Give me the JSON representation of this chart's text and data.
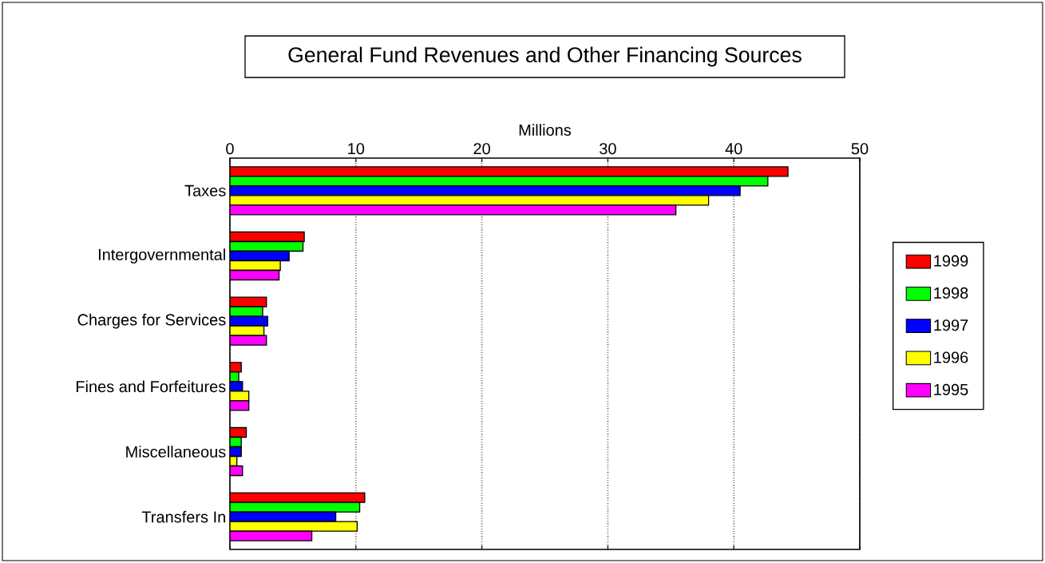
{
  "chart_data": {
    "type": "bar",
    "orientation": "horizontal",
    "title": "General Fund Revenues and Other Financing Sources",
    "xlabel": "Millions",
    "categories": [
      "Taxes",
      "Intergovernmental",
      "Charges for Services",
      "Fines and Forfeitures",
      "Miscellaneous",
      "Transfers In"
    ],
    "series": [
      {
        "name": "1999",
        "color": "#ff0000",
        "values": [
          44.3,
          5.9,
          2.9,
          0.9,
          1.3,
          10.7
        ]
      },
      {
        "name": "1998",
        "color": "#00ff00",
        "values": [
          42.7,
          5.8,
          2.6,
          0.7,
          0.9,
          10.3
        ]
      },
      {
        "name": "1997",
        "color": "#0000ff",
        "values": [
          40.5,
          4.7,
          3.0,
          1.0,
          0.9,
          8.4
        ]
      },
      {
        "name": "1996",
        "color": "#ffff00",
        "values": [
          38.0,
          4.0,
          2.7,
          1.5,
          0.55,
          10.1
        ]
      },
      {
        "name": "1995",
        "color": "#ff00ff",
        "values": [
          35.4,
          3.9,
          2.9,
          1.5,
          1.0,
          6.5
        ]
      }
    ],
    "xlim": [
      0,
      50
    ],
    "xticks": [
      0,
      10,
      20,
      30,
      40,
      50
    ],
    "grid": "x",
    "legend": "right"
  }
}
